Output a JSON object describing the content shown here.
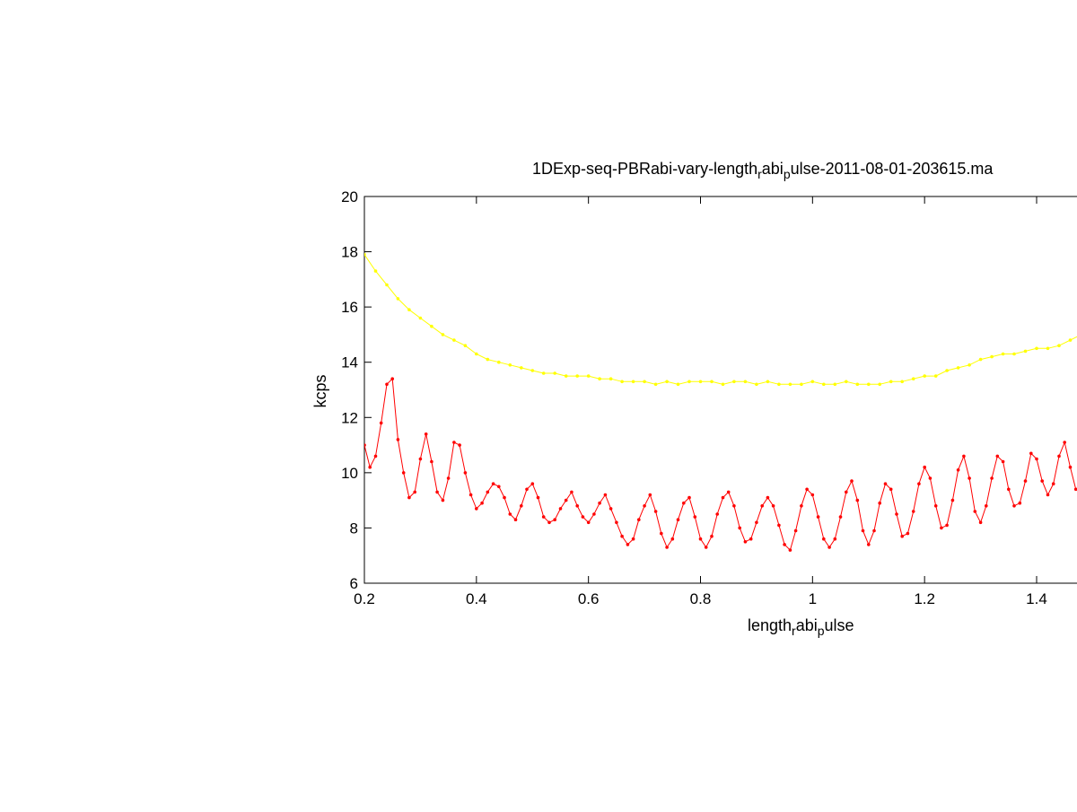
{
  "chart_data": {
    "type": "line",
    "title": {
      "prefix": "1DExp-seq-PBRabi-vary-length",
      "sub1": "r",
      "mid": "abi",
      "sub2": "p",
      "suffix": "ulse-2011-08-01-203615.ma"
    },
    "xlabel": {
      "prefix": "length",
      "sub1": "r",
      "mid": "abi",
      "sub2": "p",
      "suffix": "ulse"
    },
    "ylabel": "kcps",
    "xlim": [
      0.2,
      1.48
    ],
    "ylim": [
      6,
      20
    ],
    "xticks": [
      "0.2",
      "0.4",
      "0.6",
      "0.8",
      "1",
      "1.2",
      "1.4"
    ],
    "yticks": [
      "6",
      "8",
      "10",
      "12",
      "14",
      "16",
      "18",
      "20"
    ],
    "grid": false,
    "marker": "dot",
    "series": [
      {
        "color": "#ffff00",
        "x": [
          0.2,
          0.22,
          0.24,
          0.26,
          0.28,
          0.3,
          0.32,
          0.34,
          0.36,
          0.38,
          0.4,
          0.42,
          0.44,
          0.46,
          0.48,
          0.5,
          0.52,
          0.54,
          0.56,
          0.58,
          0.6,
          0.62,
          0.64,
          0.66,
          0.68,
          0.7,
          0.72,
          0.74,
          0.76,
          0.78,
          0.8,
          0.82,
          0.84,
          0.86,
          0.88,
          0.9,
          0.92,
          0.94,
          0.96,
          0.98,
          1.0,
          1.02,
          1.04,
          1.06,
          1.08,
          1.1,
          1.12,
          1.14,
          1.16,
          1.18,
          1.2,
          1.22,
          1.24,
          1.26,
          1.28,
          1.3,
          1.32,
          1.34,
          1.36,
          1.38,
          1.4,
          1.42,
          1.44,
          1.46,
          1.48
        ],
        "y": [
          17.9,
          17.3,
          16.8,
          16.3,
          15.9,
          15.6,
          15.3,
          15.0,
          14.8,
          14.6,
          14.3,
          14.1,
          14.0,
          13.9,
          13.8,
          13.7,
          13.6,
          13.6,
          13.5,
          13.5,
          13.5,
          13.4,
          13.4,
          13.3,
          13.3,
          13.3,
          13.2,
          13.3,
          13.2,
          13.3,
          13.3,
          13.3,
          13.2,
          13.3,
          13.3,
          13.2,
          13.3,
          13.2,
          13.2,
          13.2,
          13.3,
          13.2,
          13.2,
          13.3,
          13.2,
          13.2,
          13.2,
          13.3,
          13.3,
          13.4,
          13.5,
          13.5,
          13.7,
          13.8,
          13.9,
          14.1,
          14.2,
          14.3,
          14.3,
          14.4,
          14.5,
          14.5,
          14.6,
          14.8,
          15.0
        ]
      },
      {
        "color": "#ff0000",
        "x": [
          0.2,
          0.21,
          0.22,
          0.23,
          0.24,
          0.25,
          0.26,
          0.27,
          0.28,
          0.29,
          0.3,
          0.31,
          0.32,
          0.33,
          0.34,
          0.35,
          0.36,
          0.37,
          0.38,
          0.39,
          0.4,
          0.41,
          0.42,
          0.43,
          0.44,
          0.45,
          0.46,
          0.47,
          0.48,
          0.49,
          0.5,
          0.51,
          0.52,
          0.53,
          0.54,
          0.55,
          0.56,
          0.57,
          0.58,
          0.59,
          0.6,
          0.61,
          0.62,
          0.63,
          0.64,
          0.65,
          0.66,
          0.67,
          0.68,
          0.69,
          0.7,
          0.71,
          0.72,
          0.73,
          0.74,
          0.75,
          0.76,
          0.77,
          0.78,
          0.79,
          0.8,
          0.81,
          0.82,
          0.83,
          0.84,
          0.85,
          0.86,
          0.87,
          0.88,
          0.89,
          0.9,
          0.91,
          0.92,
          0.93,
          0.94,
          0.95,
          0.96,
          0.97,
          0.98,
          0.99,
          1.0,
          1.01,
          1.02,
          1.03,
          1.04,
          1.05,
          1.06,
          1.07,
          1.08,
          1.09,
          1.1,
          1.11,
          1.12,
          1.13,
          1.14,
          1.15,
          1.16,
          1.17,
          1.18,
          1.19,
          1.2,
          1.21,
          1.22,
          1.23,
          1.24,
          1.25,
          1.26,
          1.27,
          1.28,
          1.29,
          1.3,
          1.31,
          1.32,
          1.33,
          1.34,
          1.35,
          1.36,
          1.37,
          1.38,
          1.39,
          1.4,
          1.41,
          1.42,
          1.43,
          1.44,
          1.45,
          1.46,
          1.47,
          1.48
        ],
        "y": [
          11.0,
          10.2,
          10.6,
          11.8,
          13.2,
          13.4,
          11.2,
          10.0,
          9.1,
          9.3,
          10.5,
          11.4,
          10.4,
          9.3,
          9.0,
          9.8,
          11.1,
          11.0,
          10.0,
          9.2,
          8.7,
          8.9,
          9.3,
          9.6,
          9.5,
          9.1,
          8.5,
          8.3,
          8.8,
          9.4,
          9.6,
          9.1,
          8.4,
          8.2,
          8.3,
          8.7,
          9.0,
          9.3,
          8.8,
          8.4,
          8.2,
          8.5,
          8.9,
          9.2,
          8.7,
          8.2,
          7.7,
          7.4,
          7.6,
          8.3,
          8.8,
          9.2,
          8.6,
          7.8,
          7.3,
          7.6,
          8.3,
          8.9,
          9.1,
          8.4,
          7.6,
          7.3,
          7.7,
          8.5,
          9.1,
          9.3,
          8.8,
          8.0,
          7.5,
          7.6,
          8.2,
          8.8,
          9.1,
          8.8,
          8.1,
          7.4,
          7.2,
          7.9,
          8.8,
          9.4,
          9.2,
          8.4,
          7.6,
          7.3,
          7.6,
          8.4,
          9.3,
          9.7,
          9.0,
          7.9,
          7.4,
          7.9,
          8.9,
          9.6,
          9.4,
          8.5,
          7.7,
          7.8,
          8.6,
          9.6,
          10.2,
          9.8,
          8.8,
          8.0,
          8.1,
          9.0,
          10.1,
          10.6,
          9.8,
          8.6,
          8.2,
          8.8,
          9.8,
          10.6,
          10.4,
          9.4,
          8.8,
          8.9,
          9.7,
          10.7,
          10.5,
          9.7,
          9.2,
          9.6,
          10.6,
          11.1,
          10.2,
          9.4,
          9.3
        ]
      }
    ]
  }
}
